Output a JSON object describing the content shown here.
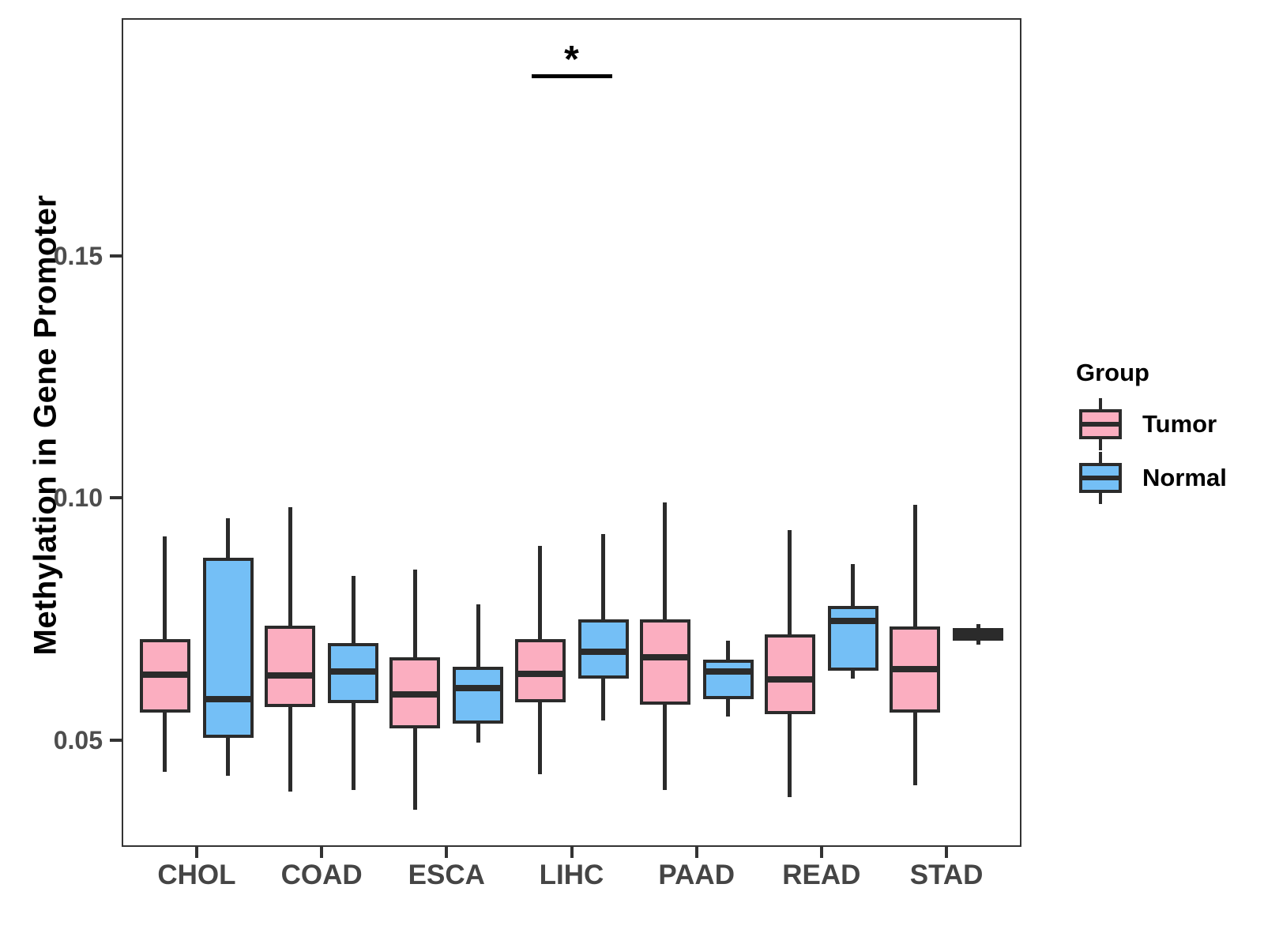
{
  "figure": {
    "background_color": "#ffffff",
    "panel_border_color": "#333333",
    "box_stroke_color": "#2b2b2b",
    "axis_text_color": "#4d4d4d"
  },
  "legend": {
    "title": "Group",
    "position": "right"
  },
  "significance_annotation": {
    "symbol": "*",
    "category": "LIHC",
    "bar_value": 0.1875
  },
  "chart_data": {
    "type": "grouped_boxplot",
    "title": "",
    "xlabel": "",
    "ylabel": "Methylation in Gene Promoter",
    "categories": [
      "CHOL",
      "COAD",
      "ESCA",
      "LIHC",
      "PAAD",
      "READ",
      "STAD"
    ],
    "ylim": [
      0.028,
      0.199
    ],
    "yticks": [
      {
        "value": 0.05,
        "label": "0.05"
      },
      {
        "value": 0.1,
        "label": "0.10"
      },
      {
        "value": 0.15,
        "label": "0.15"
      }
    ],
    "grid": false,
    "legend_position": "right",
    "series": [
      {
        "name": "Tumor",
        "fill": "#FBAEC0",
        "boxes": [
          {
            "category": "CHOL",
            "whisker_low": 0.0435,
            "q1": 0.0557,
            "median": 0.0636,
            "q3": 0.0708,
            "whisker_high": 0.0921
          },
          {
            "category": "COAD",
            "whisker_low": 0.0394,
            "q1": 0.0569,
            "median": 0.0633,
            "q3": 0.0737,
            "whisker_high": 0.0981
          },
          {
            "category": "ESCA",
            "whisker_low": 0.0356,
            "q1": 0.0525,
            "median": 0.0595,
            "q3": 0.0672,
            "whisker_high": 0.0852
          },
          {
            "category": "LIHC",
            "whisker_low": 0.043,
            "q1": 0.0579,
            "median": 0.0637,
            "q3": 0.0709,
            "whisker_high": 0.0901
          },
          {
            "category": "PAAD",
            "whisker_low": 0.0397,
            "q1": 0.0574,
            "median": 0.0672,
            "q3": 0.075,
            "whisker_high": 0.0991
          },
          {
            "category": "READ",
            "whisker_low": 0.0382,
            "q1": 0.0554,
            "median": 0.0626,
            "q3": 0.0718,
            "whisker_high": 0.0934
          },
          {
            "category": "STAD",
            "whisker_low": 0.0407,
            "q1": 0.0557,
            "median": 0.0647,
            "q3": 0.0734,
            "whisker_high": 0.0986
          }
        ]
      },
      {
        "name": "Normal",
        "fill": "#74BFF6",
        "boxes": [
          {
            "category": "CHOL",
            "whisker_low": 0.0426,
            "q1": 0.0505,
            "median": 0.0585,
            "q3": 0.0876,
            "whisker_high": 0.0958
          },
          {
            "category": "COAD",
            "whisker_low": 0.0397,
            "q1": 0.0577,
            "median": 0.0642,
            "q3": 0.0701,
            "whisker_high": 0.0839
          },
          {
            "category": "ESCA",
            "whisker_low": 0.0495,
            "q1": 0.0535,
            "median": 0.0608,
            "q3": 0.0651,
            "whisker_high": 0.0781
          },
          {
            "category": "LIHC",
            "whisker_low": 0.0541,
            "q1": 0.0628,
            "median": 0.0682,
            "q3": 0.0749,
            "whisker_high": 0.0926
          },
          {
            "category": "PAAD",
            "whisker_low": 0.0549,
            "q1": 0.0585,
            "median": 0.0642,
            "q3": 0.0667,
            "whisker_high": 0.0705
          },
          {
            "category": "READ",
            "whisker_low": 0.0628,
            "q1": 0.0644,
            "median": 0.0746,
            "q3": 0.0778,
            "whisker_high": 0.0863
          },
          {
            "category": "STAD",
            "whisker_low": 0.0698,
            "q1": 0.0705,
            "median": 0.0719,
            "q3": 0.0732,
            "whisker_high": 0.074
          }
        ]
      }
    ],
    "annotations": [
      {
        "type": "significance",
        "symbol": "*",
        "category": "LIHC",
        "bar_value": 0.1875
      }
    ]
  }
}
